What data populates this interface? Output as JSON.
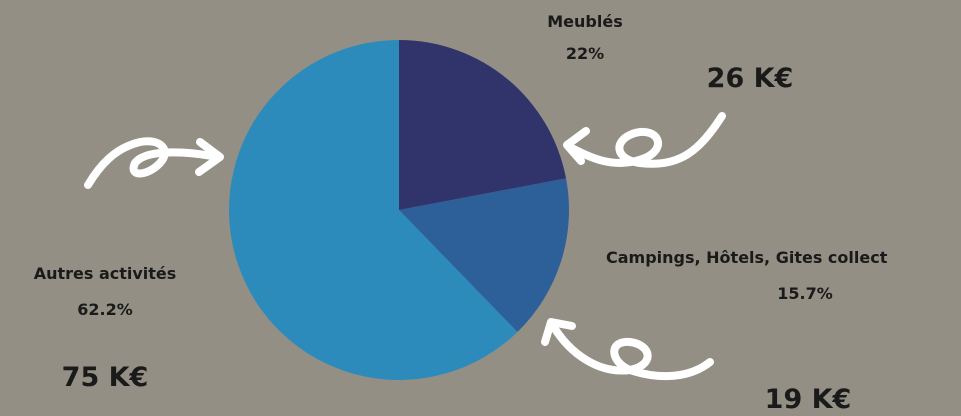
{
  "colors": {
    "background": "#948f84",
    "arrow": "#ffffff",
    "text": "#1a1a1a"
  },
  "chart_data": {
    "type": "pie",
    "slices": [
      {
        "label": "Meublés",
        "value": 22,
        "value_label": "22%",
        "amount": "26 K€",
        "color": "#31336b"
      },
      {
        "label": "Campings, Hôtels, Gites collect",
        "value": 15.7,
        "value_label": "15.7%",
        "amount": "19 K€",
        "color": "#2d5f99"
      },
      {
        "label": "Autres activités",
        "value": 62.2,
        "value_label": "62.2%",
        "amount": "75 K€",
        "color": "#2d8bbb"
      }
    ],
    "start_angle": "12 o'clock",
    "direction": "clockwise",
    "legend": "none"
  }
}
